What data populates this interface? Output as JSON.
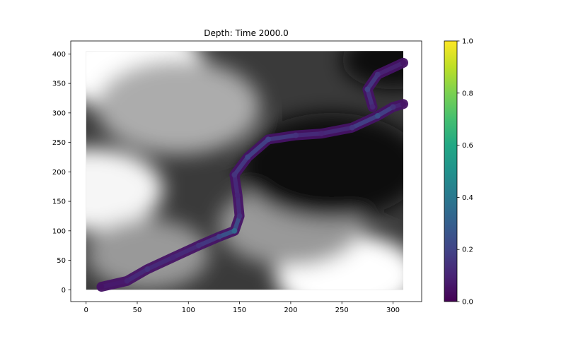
{
  "chart_data": {
    "type": "heatmap",
    "title": "Depth: Time 2000.0",
    "xlabel": "",
    "ylabel": "",
    "xlim": [
      -15,
      328
    ],
    "ylim": [
      -20,
      422
    ],
    "x_ticks": [
      0,
      50,
      100,
      150,
      200,
      250,
      300
    ],
    "y_ticks": [
      0,
      50,
      100,
      150,
      200,
      250,
      300,
      350,
      400
    ],
    "grid": false,
    "background": {
      "colormap": "gray",
      "extent": {
        "x": [
          0,
          310
        ],
        "y": [
          0,
          405
        ]
      },
      "bright_regions": [
        {
          "x": 40,
          "y": 380,
          "strength": 1.0,
          "radius": 75
        },
        {
          "x": 5,
          "y": 170,
          "strength": 0.95,
          "radius": 70
        },
        {
          "x": 90,
          "y": 310,
          "strength": 0.55,
          "radius": 80
        },
        {
          "x": 255,
          "y": 25,
          "strength": 1.0,
          "radius": 70
        },
        {
          "x": 200,
          "y": 110,
          "strength": 0.45,
          "radius": 70
        },
        {
          "x": 60,
          "y": 60,
          "strength": 0.45,
          "radius": 60
        }
      ],
      "dark_regions": [
        {
          "x": 240,
          "y": 210,
          "strength": 0.9,
          "radius": 90
        },
        {
          "x": 300,
          "y": 390,
          "strength": 0.8,
          "radius": 50
        }
      ]
    },
    "overlay": {
      "quantity": "Depth",
      "colormap": "viridis",
      "path": [
        {
          "x": 15,
          "y": 5,
          "value": 0.05
        },
        {
          "x": 40,
          "y": 15,
          "value": 0.1
        },
        {
          "x": 60,
          "y": 35,
          "value": 0.15
        },
        {
          "x": 85,
          "y": 55,
          "value": 0.1
        },
        {
          "x": 110,
          "y": 75,
          "value": 0.15
        },
        {
          "x": 130,
          "y": 90,
          "value": 0.2
        },
        {
          "x": 145,
          "y": 100,
          "value": 0.35
        },
        {
          "x": 150,
          "y": 125,
          "value": 0.15
        },
        {
          "x": 148,
          "y": 160,
          "value": 0.1
        },
        {
          "x": 145,
          "y": 195,
          "value": 0.15
        },
        {
          "x": 158,
          "y": 225,
          "value": 0.2
        },
        {
          "x": 178,
          "y": 255,
          "value": 0.2
        },
        {
          "x": 205,
          "y": 262,
          "value": 0.15
        },
        {
          "x": 230,
          "y": 265,
          "value": 0.1
        },
        {
          "x": 260,
          "y": 275,
          "value": 0.15
        },
        {
          "x": 285,
          "y": 295,
          "value": 0.25
        },
        {
          "x": 300,
          "y": 310,
          "value": 0.15
        },
        {
          "x": 310,
          "y": 315,
          "value": 0.05
        }
      ],
      "branch": [
        {
          "x": 280,
          "y": 310,
          "value": 0.1
        },
        {
          "x": 275,
          "y": 340,
          "value": 0.2
        },
        {
          "x": 285,
          "y": 365,
          "value": 0.15
        },
        {
          "x": 310,
          "y": 385,
          "value": 0.05
        }
      ]
    },
    "colorbar": {
      "colormap": "viridis",
      "range": [
        0.0,
        1.0
      ],
      "ticks": [
        0.0,
        0.2,
        0.4,
        0.6,
        0.8,
        1.0
      ],
      "tick_labels": [
        "0.0",
        "0.2",
        "0.4",
        "0.6",
        "0.8",
        "1.0"
      ]
    }
  }
}
